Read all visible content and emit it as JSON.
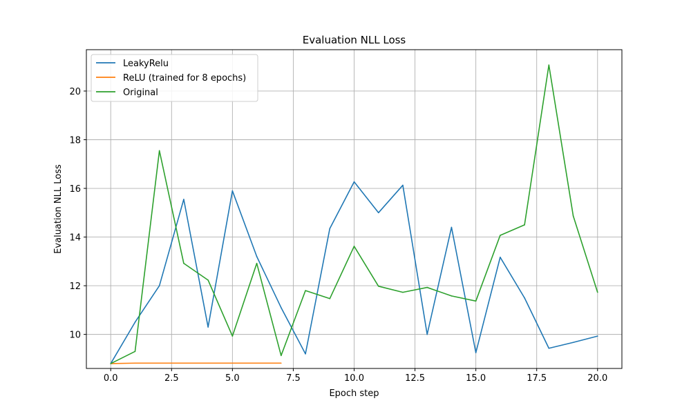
{
  "chart_data": {
    "type": "line",
    "title": "Evaluation NLL Loss",
    "xlabel": "Epoch step",
    "ylabel": "Evaluation NLL Loss",
    "xlim": [
      -1.0,
      21.0
    ],
    "ylim": [
      8.6,
      21.7
    ],
    "xticks": [
      0.0,
      2.5,
      5.0,
      7.5,
      10.0,
      12.5,
      15.0,
      17.5,
      20.0
    ],
    "xtick_labels": [
      "0.0",
      "2.5",
      "5.0",
      "7.5",
      "10.0",
      "12.5",
      "15.0",
      "17.5",
      "20.0"
    ],
    "yticks": [
      10,
      12,
      14,
      16,
      18,
      20
    ],
    "ytick_labels": [
      "10",
      "12",
      "14",
      "16",
      "18",
      "20"
    ],
    "grid": true,
    "legend_position": "upper-left",
    "series": [
      {
        "name": "LeakyRelu",
        "color": "#1f77b4",
        "x": [
          0,
          1,
          2,
          3,
          4,
          5,
          6,
          7,
          8,
          9,
          10,
          11,
          12,
          13,
          14,
          15,
          16,
          17,
          18,
          19,
          20
        ],
        "values": [
          8.8,
          10.5,
          12.0,
          15.55,
          10.3,
          15.9,
          13.2,
          11.1,
          9.2,
          14.35,
          16.27,
          15.0,
          16.13,
          10.0,
          14.4,
          9.25,
          13.17,
          11.5,
          9.43,
          9.67,
          9.93
        ]
      },
      {
        "name": "ReLU (trained for 8 epochs)",
        "color": "#ff7f0e",
        "x": [
          0,
          1,
          2,
          3,
          4,
          5,
          6,
          7
        ],
        "values": [
          8.8,
          8.82,
          8.82,
          8.82,
          8.82,
          8.82,
          8.82,
          8.82
        ]
      },
      {
        "name": "Original",
        "color": "#2ca02c",
        "x": [
          0,
          1,
          2,
          3,
          4,
          5,
          6,
          7,
          8,
          9,
          10,
          11,
          12,
          13,
          14,
          15,
          16,
          17,
          18,
          19,
          20
        ],
        "values": [
          8.8,
          9.3,
          17.55,
          12.92,
          12.23,
          9.93,
          12.92,
          9.13,
          11.8,
          11.47,
          13.62,
          11.98,
          11.73,
          11.93,
          11.58,
          11.37,
          14.07,
          14.5,
          21.07,
          14.87,
          11.73
        ]
      }
    ]
  }
}
